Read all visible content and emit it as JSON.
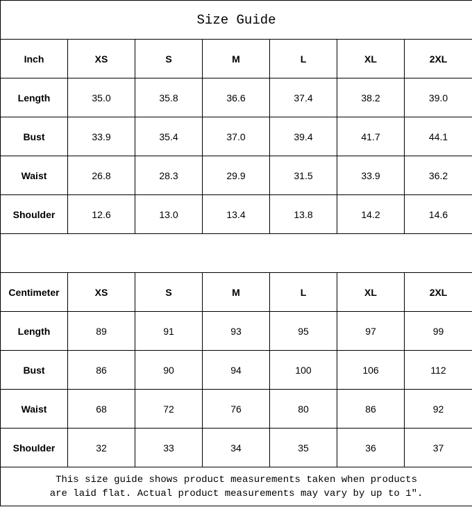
{
  "title": "Size Guide",
  "sizes": [
    "XS",
    "S",
    "M",
    "L",
    "XL",
    "2XL"
  ],
  "inch": {
    "label": "Inch",
    "rows": [
      {
        "name": "Length",
        "values": [
          "35.0",
          "35.8",
          "36.6",
          "37.4",
          "38.2",
          "39.0"
        ]
      },
      {
        "name": "Bust",
        "values": [
          "33.9",
          "35.4",
          "37.0",
          "39.4",
          "41.7",
          "44.1"
        ]
      },
      {
        "name": "Waist",
        "values": [
          "26.8",
          "28.3",
          "29.9",
          "31.5",
          "33.9",
          "36.2"
        ]
      },
      {
        "name": "Shoulder",
        "values": [
          "12.6",
          "13.0",
          "13.4",
          "13.8",
          "14.2",
          "14.6"
        ]
      }
    ]
  },
  "cm": {
    "label": "Centimeter",
    "rows": [
      {
        "name": "Length",
        "values": [
          "89",
          "91",
          "93",
          "95",
          "97",
          "99"
        ]
      },
      {
        "name": "Bust",
        "values": [
          "86",
          "90",
          "94",
          "100",
          "106",
          "112"
        ]
      },
      {
        "name": "Waist",
        "values": [
          "68",
          "72",
          "76",
          "80",
          "86",
          "92"
        ]
      },
      {
        "name": "Shoulder",
        "values": [
          "32",
          "33",
          "34",
          "35",
          "36",
          "37"
        ]
      }
    ]
  },
  "footer": {
    "line1": "This size guide shows product measurements taken when products",
    "line2": "are laid flat. Actual product measurements may vary by up to 1″."
  }
}
